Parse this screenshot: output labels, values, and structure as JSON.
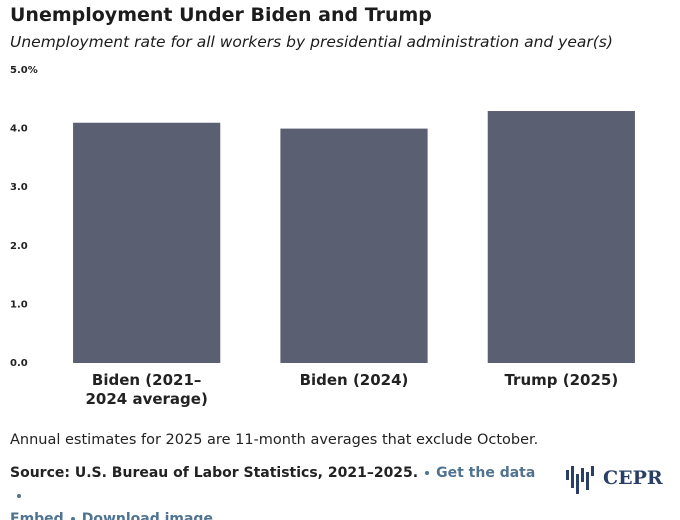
{
  "chart_data": {
    "type": "bar",
    "title": "Unemployment Under Biden and Trump",
    "subtitle": "Unemployment rate for all workers by presidential administration and year(s)",
    "categories": [
      "Biden (2021–2024 average)",
      "Biden (2024)",
      "Trump (2025)"
    ],
    "values": [
      4.1,
      4.0,
      4.3
    ],
    "color": "#5b5f72",
    "ylim": [
      0,
      5
    ],
    "yticks": [
      {
        "value": 0,
        "label": "0.0"
      },
      {
        "value": 1,
        "label": "1.0"
      },
      {
        "value": 2,
        "label": "2.0"
      },
      {
        "value": 3,
        "label": "3.0"
      },
      {
        "value": 4,
        "label": "4.0"
      },
      {
        "value": 5,
        "label": "5.0%"
      }
    ],
    "grid": false
  },
  "footer": {
    "note": "Annual estimates for 2025 are 11-month averages that exclude October.",
    "source": "Source: U.S. Bureau of Labor Statistics, 2021–2025.",
    "links": [
      "Get the data",
      "Embed",
      "Download image"
    ],
    "logo": "CEPR"
  }
}
